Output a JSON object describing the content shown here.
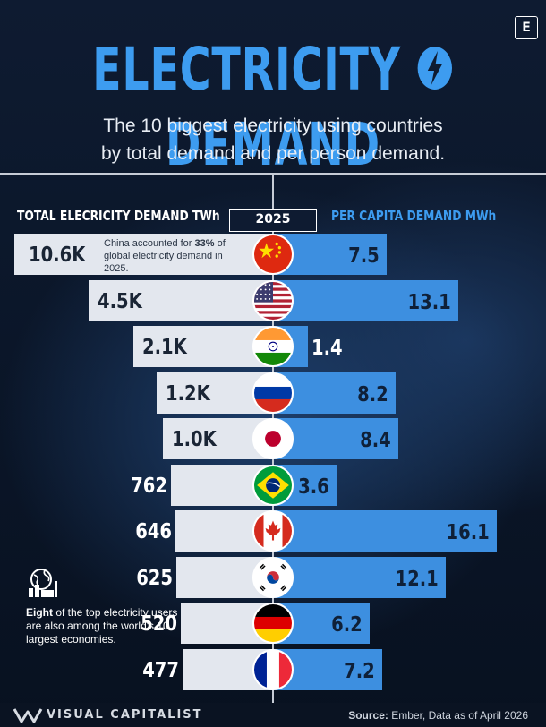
{
  "brand": {
    "mark": "E",
    "name": "VISUAL CAPITALIST"
  },
  "header": {
    "title_part1": "ELECTRICITY",
    "title_part2": "DEMAND",
    "subtitle_line1": "The 10 biggest electricity using countries",
    "subtitle_line2": "by total demand and per person demand."
  },
  "colors": {
    "accent_blue": "#3d9cf0",
    "bar_blue": "#3d8fe0",
    "bar_light": "#e3e7ee",
    "background": "#0e1b31"
  },
  "chart_data": {
    "type": "bar",
    "left_axis_label": "TOTAL ELECRICITY DEMAND TWh",
    "year": "2025",
    "right_axis_label": "PER CAPITA DEMAND MWh",
    "categories": [
      "China",
      "United States",
      "India",
      "Russia",
      "Japan",
      "Brazil",
      "Canada",
      "South Korea",
      "Germany",
      "France"
    ],
    "flag_icons": [
      "china-flag-icon",
      "usa-flag-icon",
      "india-flag-icon",
      "russia-flag-icon",
      "japan-flag-icon",
      "brazil-flag-icon",
      "canada-flag-icon",
      "south-korea-flag-icon",
      "germany-flag-icon",
      "france-flag-icon"
    ],
    "series": [
      {
        "values": [
          10600,
          4500,
          2100,
          1200,
          1000,
          762,
          646,
          625,
          520,
          477
        ],
        "labels": [
          "10.6K",
          "4.5K",
          "2.1K",
          "1.2K",
          "1.0K",
          "762",
          "646",
          "625",
          "520",
          "477"
        ]
      },
      {
        "values": [
          7.5,
          13.1,
          1.4,
          8.2,
          8.4,
          3.6,
          16.1,
          12.1,
          6.2,
          7.2
        ],
        "labels": [
          "7.5",
          "13.1",
          "1.4",
          "8.2",
          "8.4",
          "3.6",
          "16.1",
          "12.1",
          "6.2",
          "7.2"
        ]
      }
    ]
  },
  "notes": {
    "china_pre": "China accounted for ",
    "china_pct": "33%",
    "china_post": " of global electricity demand in 2025.",
    "eight_bold": "Eight",
    "eight_rest": " of the top electricity users are also among the world's 10 largest economies."
  },
  "footer": {
    "source_label": "Source:",
    "source_text": " Ember, Data as of April 2026"
  }
}
